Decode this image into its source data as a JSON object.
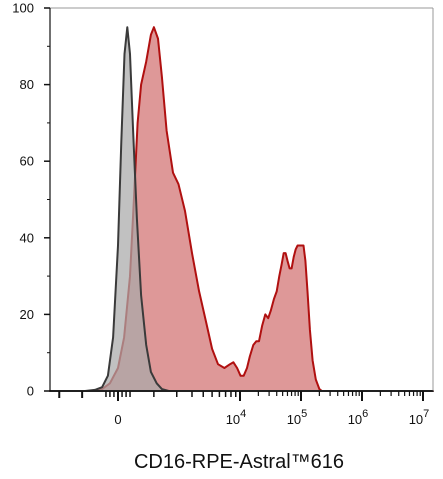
{
  "chart_data": {
    "type": "area",
    "xlabel": "CD16-RPE-Astral™616",
    "ylabel": "",
    "xscale": "biexponential",
    "ylim": [
      0,
      100
    ],
    "y_ticks": [
      {
        "value": 0,
        "label": "0"
      },
      {
        "value": 20,
        "label": "20"
      },
      {
        "value": 40,
        "label": "40"
      },
      {
        "value": 60,
        "label": "60"
      },
      {
        "value": 80,
        "label": "80"
      },
      {
        "value": 100,
        "label": "100"
      }
    ],
    "x_ticks": [
      {
        "value": 0,
        "base": "0",
        "exp": ""
      },
      {
        "value": 10000,
        "base": "10",
        "exp": "4"
      },
      {
        "value": 100000,
        "base": "10",
        "exp": "5"
      },
      {
        "value": 1000000,
        "base": "10",
        "exp": "6"
      },
      {
        "value": 10000000,
        "base": "10",
        "exp": "7"
      }
    ],
    "series": [
      {
        "role": "control",
        "fill": "#a9a9a9",
        "stroke": "#3a3a3a",
        "points": [
          [
            -900,
            0
          ],
          [
            -600,
            0.3
          ],
          [
            -400,
            1
          ],
          [
            -250,
            4
          ],
          [
            -120,
            14
          ],
          [
            0,
            38
          ],
          [
            80,
            65
          ],
          [
            160,
            88
          ],
          [
            230,
            95
          ],
          [
            300,
            88
          ],
          [
            380,
            68
          ],
          [
            480,
            45
          ],
          [
            600,
            25
          ],
          [
            750,
            12
          ],
          [
            900,
            5
          ],
          [
            1100,
            2
          ],
          [
            1300,
            0.5
          ],
          [
            1600,
            0
          ]
        ]
      },
      {
        "role": "stained",
        "fill": "#d06c6c",
        "stroke": "#b01010",
        "points": [
          [
            -600,
            0
          ],
          [
            -400,
            0.5
          ],
          [
            -200,
            2
          ],
          [
            0,
            6
          ],
          [
            150,
            14
          ],
          [
            300,
            30
          ],
          [
            400,
            50
          ],
          [
            500,
            70
          ],
          [
            600,
            80
          ],
          [
            750,
            86
          ],
          [
            900,
            93
          ],
          [
            1000,
            95
          ],
          [
            1150,
            92
          ],
          [
            1300,
            82
          ],
          [
            1500,
            68
          ],
          [
            1800,
            57
          ],
          [
            2100,
            54
          ],
          [
            2500,
            47
          ],
          [
            3000,
            36
          ],
          [
            3600,
            26
          ],
          [
            4300,
            18
          ],
          [
            5000,
            11
          ],
          [
            5800,
            7
          ],
          [
            6800,
            6
          ],
          [
            7800,
            7
          ],
          [
            8500,
            7.5
          ],
          [
            9300,
            6
          ],
          [
            10200,
            4
          ],
          [
            11500,
            4
          ],
          [
            13000,
            6
          ],
          [
            14500,
            9
          ],
          [
            16500,
            12
          ],
          [
            18500,
            13
          ],
          [
            20500,
            13
          ],
          [
            23000,
            17
          ],
          [
            26000,
            20
          ],
          [
            29000,
            19
          ],
          [
            32000,
            21
          ],
          [
            36000,
            24
          ],
          [
            40000,
            26
          ],
          [
            44000,
            30
          ],
          [
            48000,
            33
          ],
          [
            52000,
            36
          ],
          [
            56000,
            36
          ],
          [
            60000,
            34
          ],
          [
            65000,
            32
          ],
          [
            70000,
            32
          ],
          [
            76000,
            35
          ],
          [
            82000,
            37
          ],
          [
            88000,
            38
          ],
          [
            95000,
            38
          ],
          [
            102000,
            38
          ],
          [
            110000,
            38
          ],
          [
            118000,
            34
          ],
          [
            128000,
            26
          ],
          [
            140000,
            16
          ],
          [
            155000,
            8
          ],
          [
            175000,
            3
          ],
          [
            200000,
            0.5
          ],
          [
            220000,
            0
          ]
        ]
      }
    ]
  }
}
